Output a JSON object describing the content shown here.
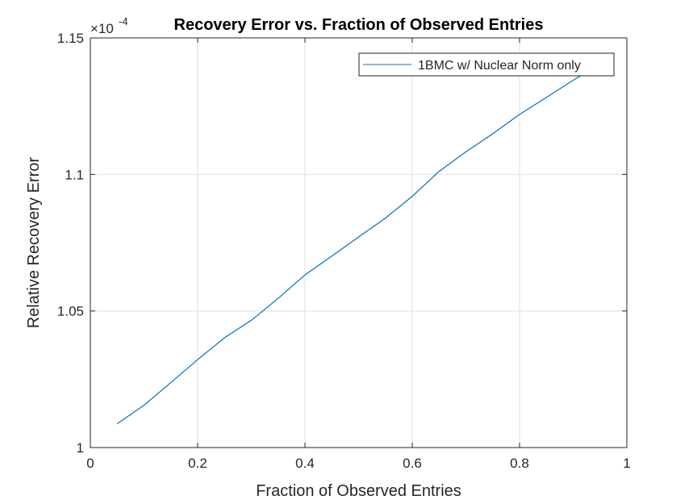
{
  "chart_data": {
    "type": "line",
    "title": "Recovery Error vs. Fraction of Observed Entries",
    "xlabel": "Fraction of Observed Entries",
    "ylabel": "Relative Recovery Error",
    "xlim": [
      0,
      1
    ],
    "ylim": [
      1.0,
      1.15
    ],
    "y_exponent_label": "×10",
    "y_exponent_power": "-4",
    "xticks": [
      0,
      0.2,
      0.4,
      0.6,
      0.8,
      1
    ],
    "xtick_labels": [
      "0",
      "0.2",
      "0.4",
      "0.6",
      "0.8",
      "1"
    ],
    "yticks": [
      1.0,
      1.05,
      1.1,
      1.15
    ],
    "ytick_labels": [
      "1",
      "1.05",
      "1.1",
      "1.15"
    ],
    "grid": true,
    "legend_position": "top-right",
    "series": [
      {
        "name": "1BMC w/ Nuclear Norm only",
        "color": "#0072BD",
        "x": [
          0.05,
          0.1,
          0.15,
          0.2,
          0.25,
          0.3,
          0.35,
          0.4,
          0.45,
          0.5,
          0.55,
          0.6,
          0.65,
          0.7,
          0.75,
          0.8,
          0.85,
          0.9,
          0.95
        ],
        "y": [
          1.0087,
          1.0155,
          1.0238,
          1.0322,
          1.0402,
          1.0466,
          1.0546,
          1.0632,
          1.0701,
          1.0771,
          1.084,
          1.092,
          1.1011,
          1.1083,
          1.1149,
          1.122,
          1.1282,
          1.1345,
          1.1405
        ]
      }
    ]
  }
}
